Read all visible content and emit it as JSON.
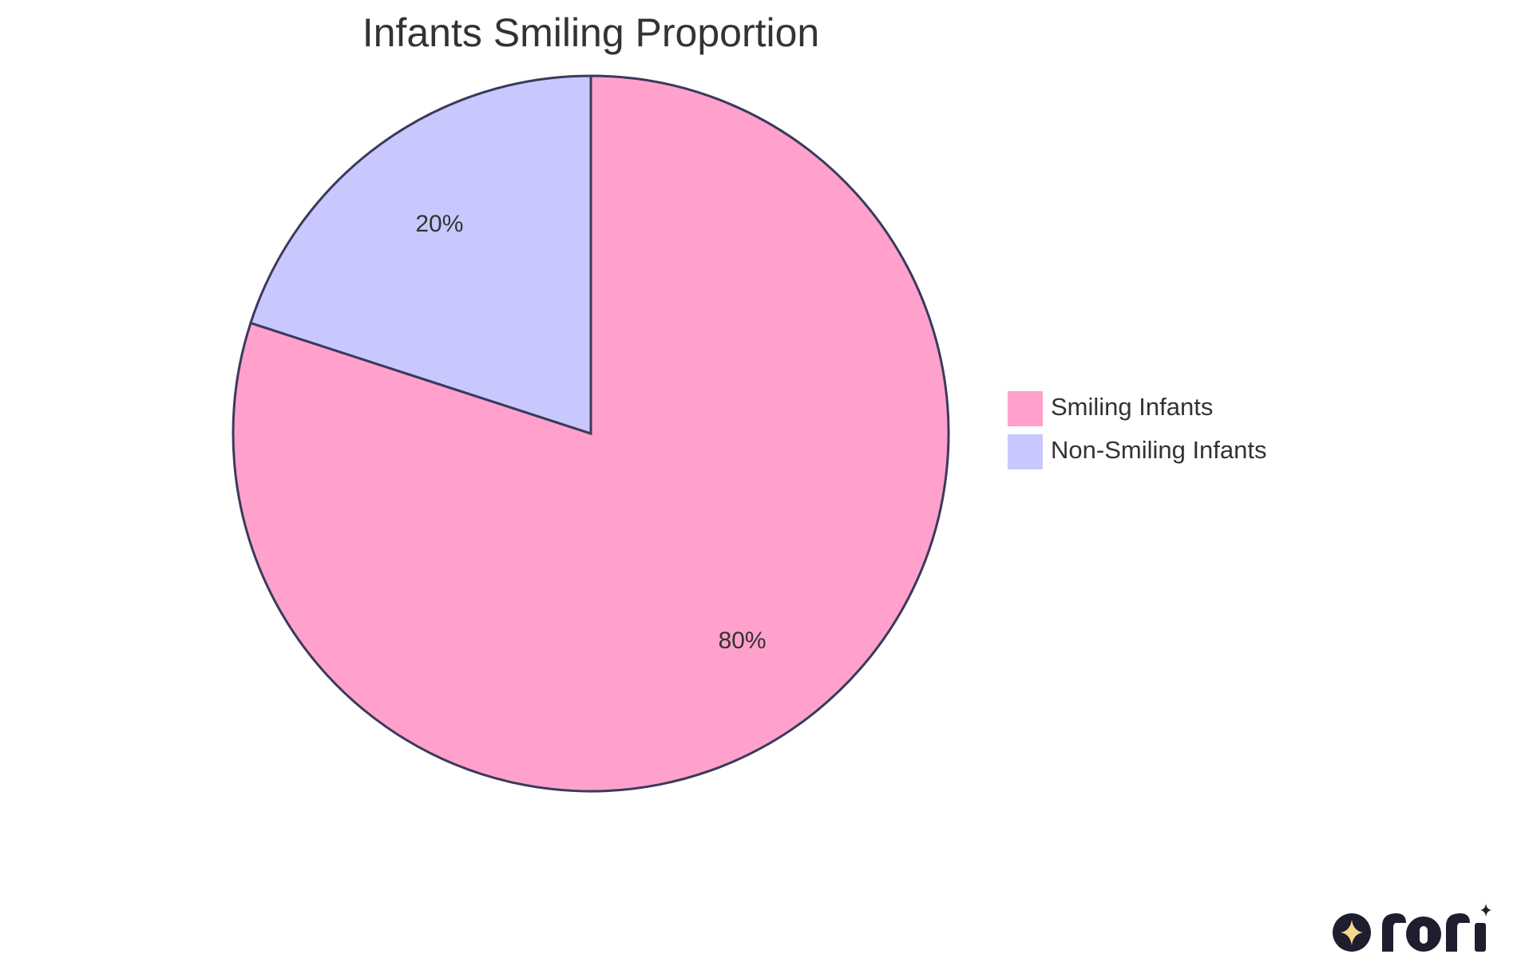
{
  "chart_data": {
    "type": "pie",
    "title": "Infants Smiling Proportion",
    "slices": [
      {
        "label": "Smiling Infants",
        "value": 80,
        "display": "80%",
        "color": "#ffa1cc"
      },
      {
        "label": "Non-Smiling Infants",
        "value": 20,
        "display": "20%",
        "color": "#c8c8fe"
      }
    ],
    "legend_position": "right",
    "stroke_color": "#3a3a5c"
  },
  "branding": {
    "logo_text": "rori",
    "logo_icon": "sparkle-icon",
    "logo_color": "#1e1e2e",
    "logo_accent": "#f6d98c"
  }
}
